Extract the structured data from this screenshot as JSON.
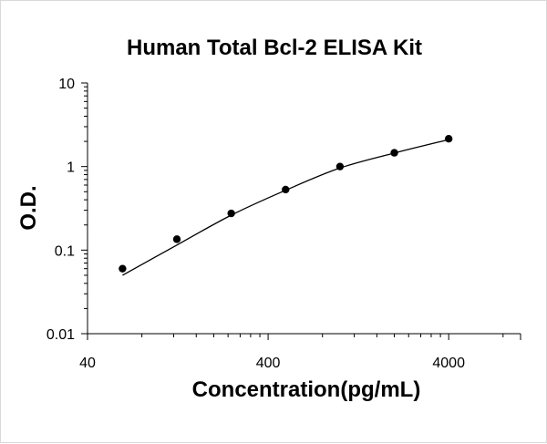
{
  "chart_data": {
    "type": "scatter",
    "title": "Human Total Bcl-2 ELISA Kit",
    "xlabel": "Concentration(pg/mL)",
    "ylabel": "O.D.",
    "x_scale": "log",
    "y_scale": "log",
    "xlim": [
      40,
      10000
    ],
    "ylim": [
      0.01,
      10
    ],
    "x_ticks": [
      "40",
      "400",
      "4000"
    ],
    "y_ticks": [
      "0.01",
      "0.1",
      "1",
      "10"
    ],
    "grid": false,
    "legend": false,
    "series": [
      {
        "x": [
          62.5,
          125,
          250,
          500,
          1000,
          2000,
          4000
        ],
        "y": [
          0.06,
          0.135,
          0.275,
          0.53,
          1.0,
          1.46,
          2.15
        ]
      }
    ],
    "fit_curve": {
      "x": [
        62.5,
        125,
        250,
        500,
        1000,
        2000,
        4000
      ],
      "y": [
        0.05,
        0.115,
        0.262,
        0.52,
        0.96,
        1.45,
        2.1
      ]
    },
    "colors": {
      "marker": "#000000",
      "line": "#000000",
      "axis": "#000000"
    }
  }
}
